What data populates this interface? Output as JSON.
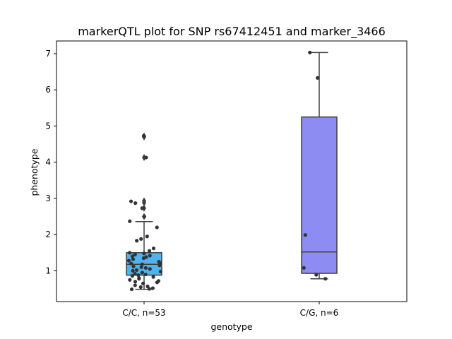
{
  "chart_data": {
    "type": "box",
    "title": "markerQTL plot for SNP rs67412451 and marker_3466",
    "xlabel": "genotype",
    "ylabel": "phenotype",
    "ylim": [
      0.15,
      7.35
    ],
    "yticks": [
      1,
      2,
      3,
      4,
      5,
      6,
      7
    ],
    "categories": [
      "C/C, n=53",
      "C/G, n=6"
    ],
    "series": [
      {
        "category": "C/C, n=53",
        "color": "#4fb3ee",
        "q1": 0.88,
        "median": 1.18,
        "q3": 1.5,
        "whisker_low": 0.49,
        "whisker_high": 2.36,
        "outliers": [
          4.72,
          4.7,
          4.13,
          2.93,
          2.88,
          2.73,
          2.5
        ],
        "points": [
          4.73,
          4.13,
          2.92,
          2.87,
          2.73,
          2.5,
          2.37,
          2.2,
          1.95,
          1.88,
          1.83,
          1.62,
          1.55,
          1.5,
          1.48,
          1.45,
          1.42,
          1.4,
          1.38,
          1.35,
          1.32,
          1.28,
          1.25,
          1.22,
          1.2,
          1.18,
          1.15,
          1.12,
          1.1,
          1.08,
          1.05,
          1.02,
          1.0,
          0.98,
          0.95,
          0.92,
          0.9,
          0.88,
          0.86,
          0.83,
          0.8,
          0.78,
          0.75,
          0.72,
          0.7,
          0.68,
          0.65,
          0.6,
          0.57,
          0.55,
          0.52,
          0.5,
          0.49
        ]
      },
      {
        "category": "C/G, n=6",
        "color": "#8c8cf2",
        "q1": 0.93,
        "median": 1.52,
        "q3": 5.25,
        "whisker_low": 0.78,
        "whisker_high": 7.03,
        "outliers": [],
        "points": [
          7.03,
          6.33,
          1.99,
          1.08,
          0.89,
          0.78
        ]
      }
    ],
    "grid": false,
    "legend": "none"
  }
}
